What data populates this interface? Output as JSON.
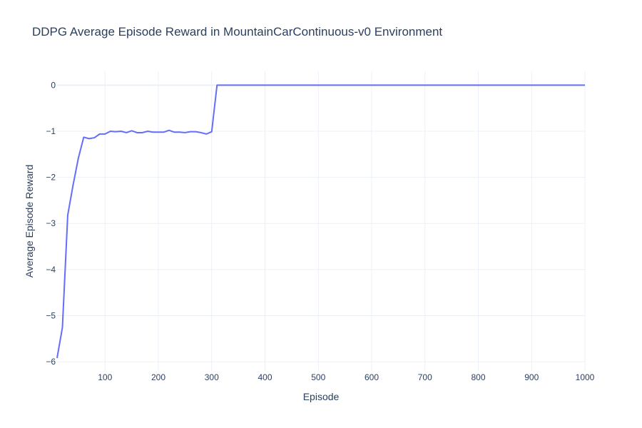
{
  "chart_data": {
    "type": "line",
    "title": "DDPG Average Episode Reward in MountainCarContinuous-v0 Environment",
    "xlabel": "Episode",
    "ylabel": "Average Episode Reward",
    "xlim": [
      10,
      1000
    ],
    "ylim": [
      -6.2,
      0.3
    ],
    "x_ticks": [
      100,
      200,
      300,
      400,
      500,
      600,
      700,
      800,
      900,
      1000
    ],
    "y_ticks": [
      0,
      -1,
      -2,
      -3,
      -4,
      -5,
      -6
    ],
    "y_tick_labels": [
      "0",
      "−1",
      "−2",
      "−3",
      "−4",
      "−5",
      "−6"
    ],
    "grid": true,
    "legend": "none",
    "series": [
      {
        "color": "#636efa",
        "x": [
          10,
          20,
          30,
          40,
          50,
          60,
          70,
          80,
          90,
          100,
          110,
          120,
          130,
          140,
          150,
          160,
          170,
          180,
          190,
          200,
          210,
          220,
          230,
          240,
          250,
          260,
          270,
          280,
          290,
          300,
          310,
          320,
          330,
          340,
          350,
          360,
          370,
          380,
          390,
          400,
          410,
          420,
          430,
          440,
          450,
          460,
          470,
          480,
          490,
          500,
          510,
          520,
          530,
          540,
          550,
          560,
          570,
          580,
          590,
          600,
          610,
          620,
          630,
          640,
          650,
          660,
          670,
          680,
          690,
          700,
          710,
          720,
          730,
          740,
          750,
          760,
          770,
          780,
          790,
          800,
          810,
          820,
          830,
          840,
          850,
          860,
          870,
          880,
          890,
          900,
          910,
          920,
          930,
          940,
          950,
          960,
          970,
          980,
          990,
          1000
        ],
        "y": [
          -5.92,
          -5.26,
          -2.82,
          -2.17,
          -1.58,
          -1.13,
          -1.16,
          -1.14,
          -1.06,
          -1.06,
          -1.0,
          -1.01,
          -1.0,
          -1.03,
          -0.99,
          -1.03,
          -1.03,
          -1.0,
          -1.02,
          -1.02,
          -1.02,
          -0.98,
          -1.02,
          -1.02,
          -1.03,
          -1.01,
          -1.01,
          -1.03,
          -1.06,
          -1.01,
          0,
          0,
          0,
          0,
          0,
          0,
          0,
          0,
          0,
          0,
          0,
          0,
          0,
          0,
          0,
          0,
          0,
          0,
          0,
          0,
          0,
          0,
          0,
          0,
          0,
          0,
          0,
          0,
          0,
          0,
          0,
          0,
          0,
          0,
          0,
          0,
          0,
          0,
          0,
          0,
          0,
          0,
          0,
          0,
          0,
          0,
          0,
          0,
          0,
          0,
          0,
          0,
          0,
          0,
          0,
          0,
          0,
          0,
          0,
          0,
          0,
          0,
          0,
          0,
          0,
          0,
          0,
          0,
          0,
          0
        ]
      }
    ]
  }
}
